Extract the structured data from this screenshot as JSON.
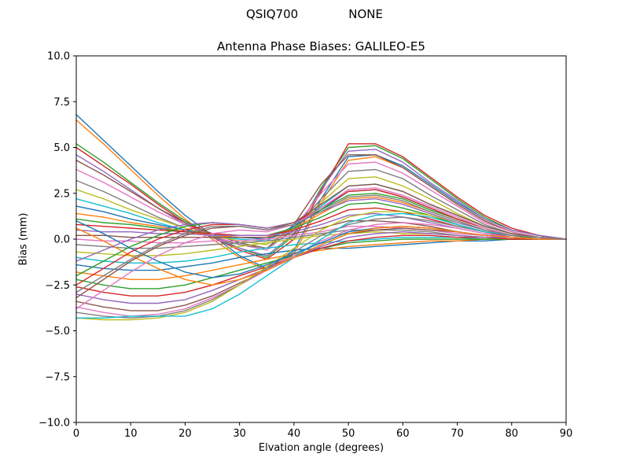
{
  "figure": {
    "suptitle_left": "QSIQ700",
    "suptitle_right": "NONE"
  },
  "chart_data": {
    "type": "line",
    "title": "Antenna Phase Biases: GALILEO-E5",
    "xlabel": "Elvation angle (degrees)",
    "ylabel": "Bias (mm)",
    "xlim": [
      0,
      90
    ],
    "ylim": [
      -10.0,
      10.0
    ],
    "grid": false,
    "legend": "none",
    "background": "#ffffff",
    "axes_color": "#000000",
    "xticks": [
      {
        "v": 0,
        "label": "0"
      },
      {
        "v": 10,
        "label": "10"
      },
      {
        "v": 20,
        "label": "20"
      },
      {
        "v": 30,
        "label": "30"
      },
      {
        "v": 40,
        "label": "40"
      },
      {
        "v": 50,
        "label": "50"
      },
      {
        "v": 60,
        "label": "60"
      },
      {
        "v": 70,
        "label": "70"
      },
      {
        "v": 80,
        "label": "80"
      },
      {
        "v": 90,
        "label": "90"
      }
    ],
    "yticks": [
      {
        "v": 10.0,
        "label": "10.0"
      },
      {
        "v": 7.5,
        "label": "7.5"
      },
      {
        "v": 5.0,
        "label": "5.0"
      },
      {
        "v": 2.5,
        "label": "2.5"
      },
      {
        "v": 0.0,
        "label": "0.0"
      },
      {
        "v": -2.5,
        "label": "−2.5"
      },
      {
        "v": -5.0,
        "label": "−5.0"
      },
      {
        "v": -7.5,
        "label": "−7.5"
      },
      {
        "v": -10.0,
        "label": "−10.0"
      }
    ],
    "x": [
      0,
      5,
      10,
      15,
      20,
      25,
      30,
      35,
      40,
      45,
      50,
      55,
      60,
      65,
      70,
      75,
      80,
      85,
      90
    ],
    "palette": [
      "#1f77b4",
      "#ff7f0e",
      "#2ca02c",
      "#d62728",
      "#9467bd",
      "#8c564b",
      "#e377c2",
      "#7f7f7f",
      "#bcbd22",
      "#17becf"
    ],
    "series": [
      [
        6.8,
        5.4,
        4.0,
        2.6,
        1.3,
        0.2,
        -0.9,
        -1.6,
        -0.6,
        2.2,
        4.5,
        4.6,
        4.0,
        3.0,
        2.0,
        1.1,
        0.5,
        0.2,
        0.0
      ],
      [
        6.5,
        5.2,
        3.8,
        2.4,
        1.1,
        0.0,
        -1.0,
        -1.7,
        -0.8,
        2.0,
        4.3,
        4.5,
        3.9,
        2.9,
        1.9,
        1.0,
        0.4,
        0.1,
        0.0
      ],
      [
        5.2,
        4.2,
        3.1,
        2.0,
        1.0,
        0.2,
        -0.5,
        -1.0,
        0.2,
        2.8,
        5.0,
        5.1,
        4.4,
        3.3,
        2.2,
        1.2,
        0.5,
        0.2,
        0.0
      ],
      [
        5.0,
        4.0,
        3.0,
        1.9,
        0.9,
        0.1,
        -0.6,
        -1.1,
        0.0,
        2.6,
        5.2,
        5.2,
        4.5,
        3.4,
        2.3,
        1.3,
        0.6,
        0.2,
        0.0
      ],
      [
        4.6,
        3.7,
        2.7,
        1.7,
        0.8,
        0.1,
        -0.5,
        -0.9,
        0.3,
        2.7,
        4.8,
        4.9,
        4.2,
        3.1,
        2.1,
        1.1,
        0.5,
        0.2,
        0.0
      ],
      [
        4.3,
        3.5,
        2.6,
        1.7,
        0.9,
        0.3,
        -0.2,
        -0.5,
        0.8,
        3.0,
        4.6,
        4.6,
        3.9,
        2.9,
        1.9,
        1.0,
        0.4,
        0.1,
        0.0
      ],
      [
        3.8,
        3.1,
        2.3,
        1.5,
        0.8,
        0.2,
        -0.3,
        -0.6,
        0.6,
        2.5,
        4.1,
        4.2,
        3.6,
        2.7,
        1.8,
        0.9,
        0.4,
        0.1,
        0.0
      ],
      [
        3.2,
        2.6,
        1.9,
        1.2,
        0.6,
        0.1,
        -0.3,
        -0.5,
        0.5,
        2.2,
        3.7,
        3.8,
        3.3,
        2.4,
        1.6,
        0.8,
        0.3,
        0.1,
        0.0
      ],
      [
        2.7,
        2.2,
        1.6,
        1.1,
        0.6,
        0.2,
        -0.1,
        -0.3,
        0.6,
        2.0,
        3.3,
        3.4,
        2.9,
        2.2,
        1.4,
        0.7,
        0.3,
        0.1,
        0.0
      ],
      [
        2.2,
        1.8,
        1.4,
        0.9,
        0.5,
        0.2,
        0.0,
        -0.1,
        0.7,
        1.8,
        2.9,
        3.0,
        2.6,
        1.9,
        1.3,
        0.7,
        0.3,
        0.1,
        0.0
      ],
      [
        1.8,
        1.5,
        1.1,
        0.8,
        0.5,
        0.2,
        0.1,
        0.0,
        0.7,
        1.6,
        2.6,
        2.7,
        2.3,
        1.7,
        1.1,
        0.6,
        0.2,
        0.1,
        0.0
      ],
      [
        1.4,
        1.2,
        0.9,
        0.7,
        0.4,
        0.2,
        0.1,
        0.1,
        0.6,
        1.4,
        2.2,
        2.3,
        2.0,
        1.5,
        1.0,
        0.5,
        0.2,
        0.1,
        0.0
      ],
      [
        1.1,
        0.9,
        0.8,
        0.6,
        0.4,
        0.3,
        0.2,
        0.2,
        0.6,
        1.2,
        1.9,
        2.0,
        1.7,
        1.3,
        0.8,
        0.4,
        0.2,
        0.0,
        0.0
      ],
      [
        0.8,
        0.7,
        0.6,
        0.5,
        0.4,
        0.3,
        0.2,
        0.2,
        0.5,
        1.0,
        1.6,
        1.7,
        1.5,
        1.1,
        0.7,
        0.4,
        0.1,
        0.0,
        0.0
      ],
      [
        0.5,
        0.4,
        0.4,
        0.3,
        0.3,
        0.2,
        0.2,
        0.2,
        0.4,
        0.8,
        1.3,
        1.4,
        1.2,
        0.9,
        0.6,
        0.3,
        0.1,
        0.0,
        0.0
      ],
      [
        0.2,
        0.2,
        0.1,
        0.1,
        0.1,
        0.1,
        0.1,
        0.1,
        0.3,
        0.6,
        1.0,
        1.0,
        0.9,
        0.7,
        0.4,
        0.2,
        0.1,
        0.0,
        0.0
      ],
      [
        0.0,
        -0.1,
        -0.1,
        -0.2,
        -0.2,
        -0.1,
        -0.1,
        0.0,
        0.2,
        0.4,
        0.7,
        0.7,
        0.6,
        0.5,
        0.3,
        0.2,
        0.1,
        0.0,
        0.0
      ],
      [
        -0.3,
        -0.4,
        -0.5,
        -0.5,
        -0.4,
        -0.3,
        -0.2,
        -0.1,
        0.1,
        0.3,
        0.5,
        0.5,
        0.5,
        0.4,
        0.2,
        0.1,
        0.0,
        0.0,
        0.0
      ],
      [
        -0.7,
        -0.8,
        -0.9,
        -0.9,
        -0.8,
        -0.6,
        -0.4,
        -0.2,
        0.0,
        0.2,
        0.3,
        0.4,
        0.3,
        0.3,
        0.2,
        0.1,
        0.0,
        0.0,
        0.0
      ],
      [
        -1.0,
        -1.2,
        -1.3,
        -1.3,
        -1.2,
        -1.0,
        -0.7,
        -0.5,
        -0.3,
        -0.2,
        -0.1,
        0.0,
        0.1,
        0.1,
        0.1,
        0.0,
        0.0,
        0.0,
        0.0
      ],
      [
        -1.4,
        -1.6,
        -1.7,
        -1.7,
        -1.5,
        -1.3,
        -1.0,
        -0.8,
        -0.6,
        -0.5,
        -0.5,
        -0.4,
        -0.3,
        -0.2,
        -0.1,
        -0.1,
        0.0,
        0.0,
        0.0
      ],
      [
        -1.8,
        -2.0,
        -2.2,
        -2.2,
        -2.0,
        -1.7,
        -1.4,
        -1.1,
        -0.8,
        -0.6,
        -0.4,
        -0.3,
        -0.2,
        -0.1,
        -0.1,
        0.0,
        0.0,
        0.0,
        0.0
      ],
      [
        -2.2,
        -2.5,
        -2.7,
        -2.7,
        -2.5,
        -2.1,
        -1.7,
        -1.3,
        -0.9,
        -0.5,
        -0.2,
        -0.1,
        0.0,
        0.0,
        0.0,
        0.0,
        0.0,
        0.0,
        0.0
      ],
      [
        -2.6,
        -2.9,
        -3.1,
        -3.1,
        -2.9,
        -2.5,
        -2.0,
        -1.5,
        -1.0,
        -0.5,
        -0.1,
        0.1,
        0.2,
        0.2,
        0.1,
        0.1,
        0.0,
        0.0,
        0.0
      ],
      [
        -3.0,
        -3.3,
        -3.5,
        -3.5,
        -3.3,
        -2.8,
        -2.2,
        -1.6,
        -1.0,
        -0.4,
        0.1,
        0.3,
        0.4,
        0.3,
        0.2,
        0.1,
        0.1,
        0.0,
        0.0
      ],
      [
        -3.4,
        -3.7,
        -3.9,
        -3.9,
        -3.6,
        -3.1,
        -2.4,
        -1.7,
        -1.0,
        -0.3,
        0.3,
        0.5,
        0.6,
        0.5,
        0.4,
        0.2,
        0.1,
        0.0,
        0.0
      ],
      [
        -3.7,
        -4.0,
        -4.2,
        -4.1,
        -3.8,
        -3.2,
        -2.5,
        -1.7,
        -0.9,
        -0.1,
        0.5,
        0.8,
        0.9,
        0.8,
        0.6,
        0.3,
        0.1,
        0.0,
        0.0
      ],
      [
        -4.0,
        -4.2,
        -4.3,
        -4.2,
        -3.9,
        -3.3,
        -2.5,
        -1.6,
        -0.7,
        0.2,
        0.8,
        1.1,
        1.2,
        1.0,
        0.7,
        0.4,
        0.2,
        0.1,
        0.0
      ],
      [
        -4.3,
        -4.4,
        -4.4,
        -4.3,
        -4.0,
        -3.4,
        -2.5,
        -1.5,
        -0.5,
        0.5,
        1.2,
        1.5,
        1.5,
        1.3,
        0.9,
        0.5,
        0.2,
        0.1,
        0.0
      ],
      [
        -4.3,
        -4.3,
        -4.2,
        -4.2,
        -4.2,
        -3.8,
        -3.0,
        -2.0,
        -1.0,
        0.0,
        0.9,
        1.3,
        1.4,
        1.2,
        0.8,
        0.4,
        0.2,
        0.1,
        0.0
      ],
      [
        1.0,
        0.3,
        -0.5,
        -1.2,
        -1.8,
        -2.1,
        -1.9,
        -1.4,
        -0.8,
        -0.2,
        0.4,
        0.6,
        0.7,
        0.6,
        0.4,
        0.2,
        0.1,
        0.0,
        0.0
      ],
      [
        0.6,
        -0.1,
        -0.9,
        -1.6,
        -2.2,
        -2.5,
        -2.2,
        -1.7,
        -1.0,
        -0.3,
        0.3,
        0.6,
        0.7,
        0.6,
        0.4,
        0.2,
        0.1,
        0.0,
        0.0
      ],
      [
        -2.0,
        -1.2,
        -0.4,
        0.2,
        0.7,
        0.9,
        0.8,
        0.6,
        0.9,
        1.6,
        2.4,
        2.5,
        2.2,
        1.6,
        1.1,
        0.6,
        0.2,
        0.1,
        0.0
      ],
      [
        -2.5,
        -1.6,
        -0.7,
        0.0,
        0.5,
        0.8,
        0.8,
        0.6,
        0.9,
        1.7,
        2.6,
        2.7,
        2.3,
        1.7,
        1.1,
        0.6,
        0.2,
        0.1,
        0.0
      ],
      [
        -1.2,
        -0.6,
        0.0,
        0.5,
        0.8,
        0.9,
        0.8,
        0.6,
        0.9,
        1.5,
        2.1,
        2.2,
        1.9,
        1.4,
        0.9,
        0.5,
        0.2,
        0.1,
        0.0
      ],
      [
        -3.2,
        -2.2,
        -1.2,
        -0.4,
        0.2,
        0.6,
        0.7,
        0.5,
        0.9,
        1.9,
        2.9,
        3.0,
        2.6,
        1.9,
        1.3,
        0.7,
        0.3,
        0.1,
        0.0
      ],
      [
        -3.8,
        -2.8,
        -1.8,
        -0.9,
        -0.2,
        0.3,
        0.5,
        0.4,
        0.8,
        1.7,
        2.7,
        2.8,
        2.4,
        1.8,
        1.2,
        0.6,
        0.2,
        0.1,
        0.0
      ],
      [
        -2.9,
        -2.0,
        -1.1,
        -0.3,
        0.3,
        0.7,
        0.7,
        0.5,
        0.8,
        1.5,
        2.3,
        2.4,
        2.1,
        1.5,
        1.0,
        0.5,
        0.2,
        0.1,
        0.0
      ]
    ]
  }
}
